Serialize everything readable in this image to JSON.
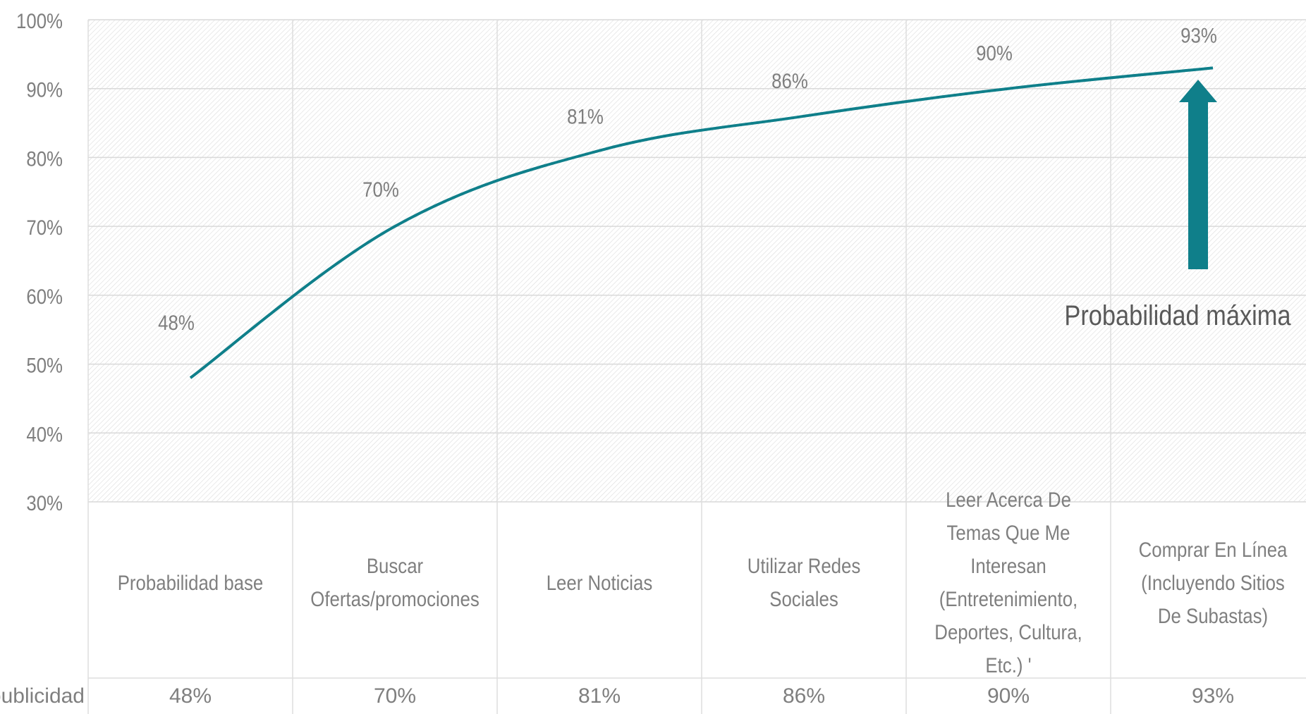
{
  "chart_data": {
    "type": "line",
    "categories": [
      "Probabilidad base",
      "Buscar Ofertas/promociones",
      "Leer Noticias",
      "Utilizar Redes Sociales",
      "Leer Acerca De Temas Que Me Interesan (Entretenimiento, Deportes, Cultura, Etc.) '",
      "Comprar En Línea (Incluyendo Sitios De Subastas)"
    ],
    "series": [
      {
        "name": "publicidad",
        "values": [
          48,
          70,
          81,
          86,
          90,
          93
        ]
      }
    ],
    "data_labels": [
      "48%",
      "70%",
      "81%",
      "86%",
      "90%",
      "93%"
    ],
    "y_ticks": [
      "100%",
      "90%",
      "80%",
      "70%",
      "60%",
      "50%",
      "40%",
      "30%"
    ],
    "ylim": [
      30,
      100
    ],
    "annotation": "Probabilidad máxima",
    "grid": true,
    "line_color": "#0f7f8a",
    "arrow_color": "#0f7f8a"
  },
  "table": {
    "row_header": "publicidad",
    "cells": [
      "48%",
      "70%",
      "81%",
      "86%",
      "90%",
      "93%"
    ]
  }
}
